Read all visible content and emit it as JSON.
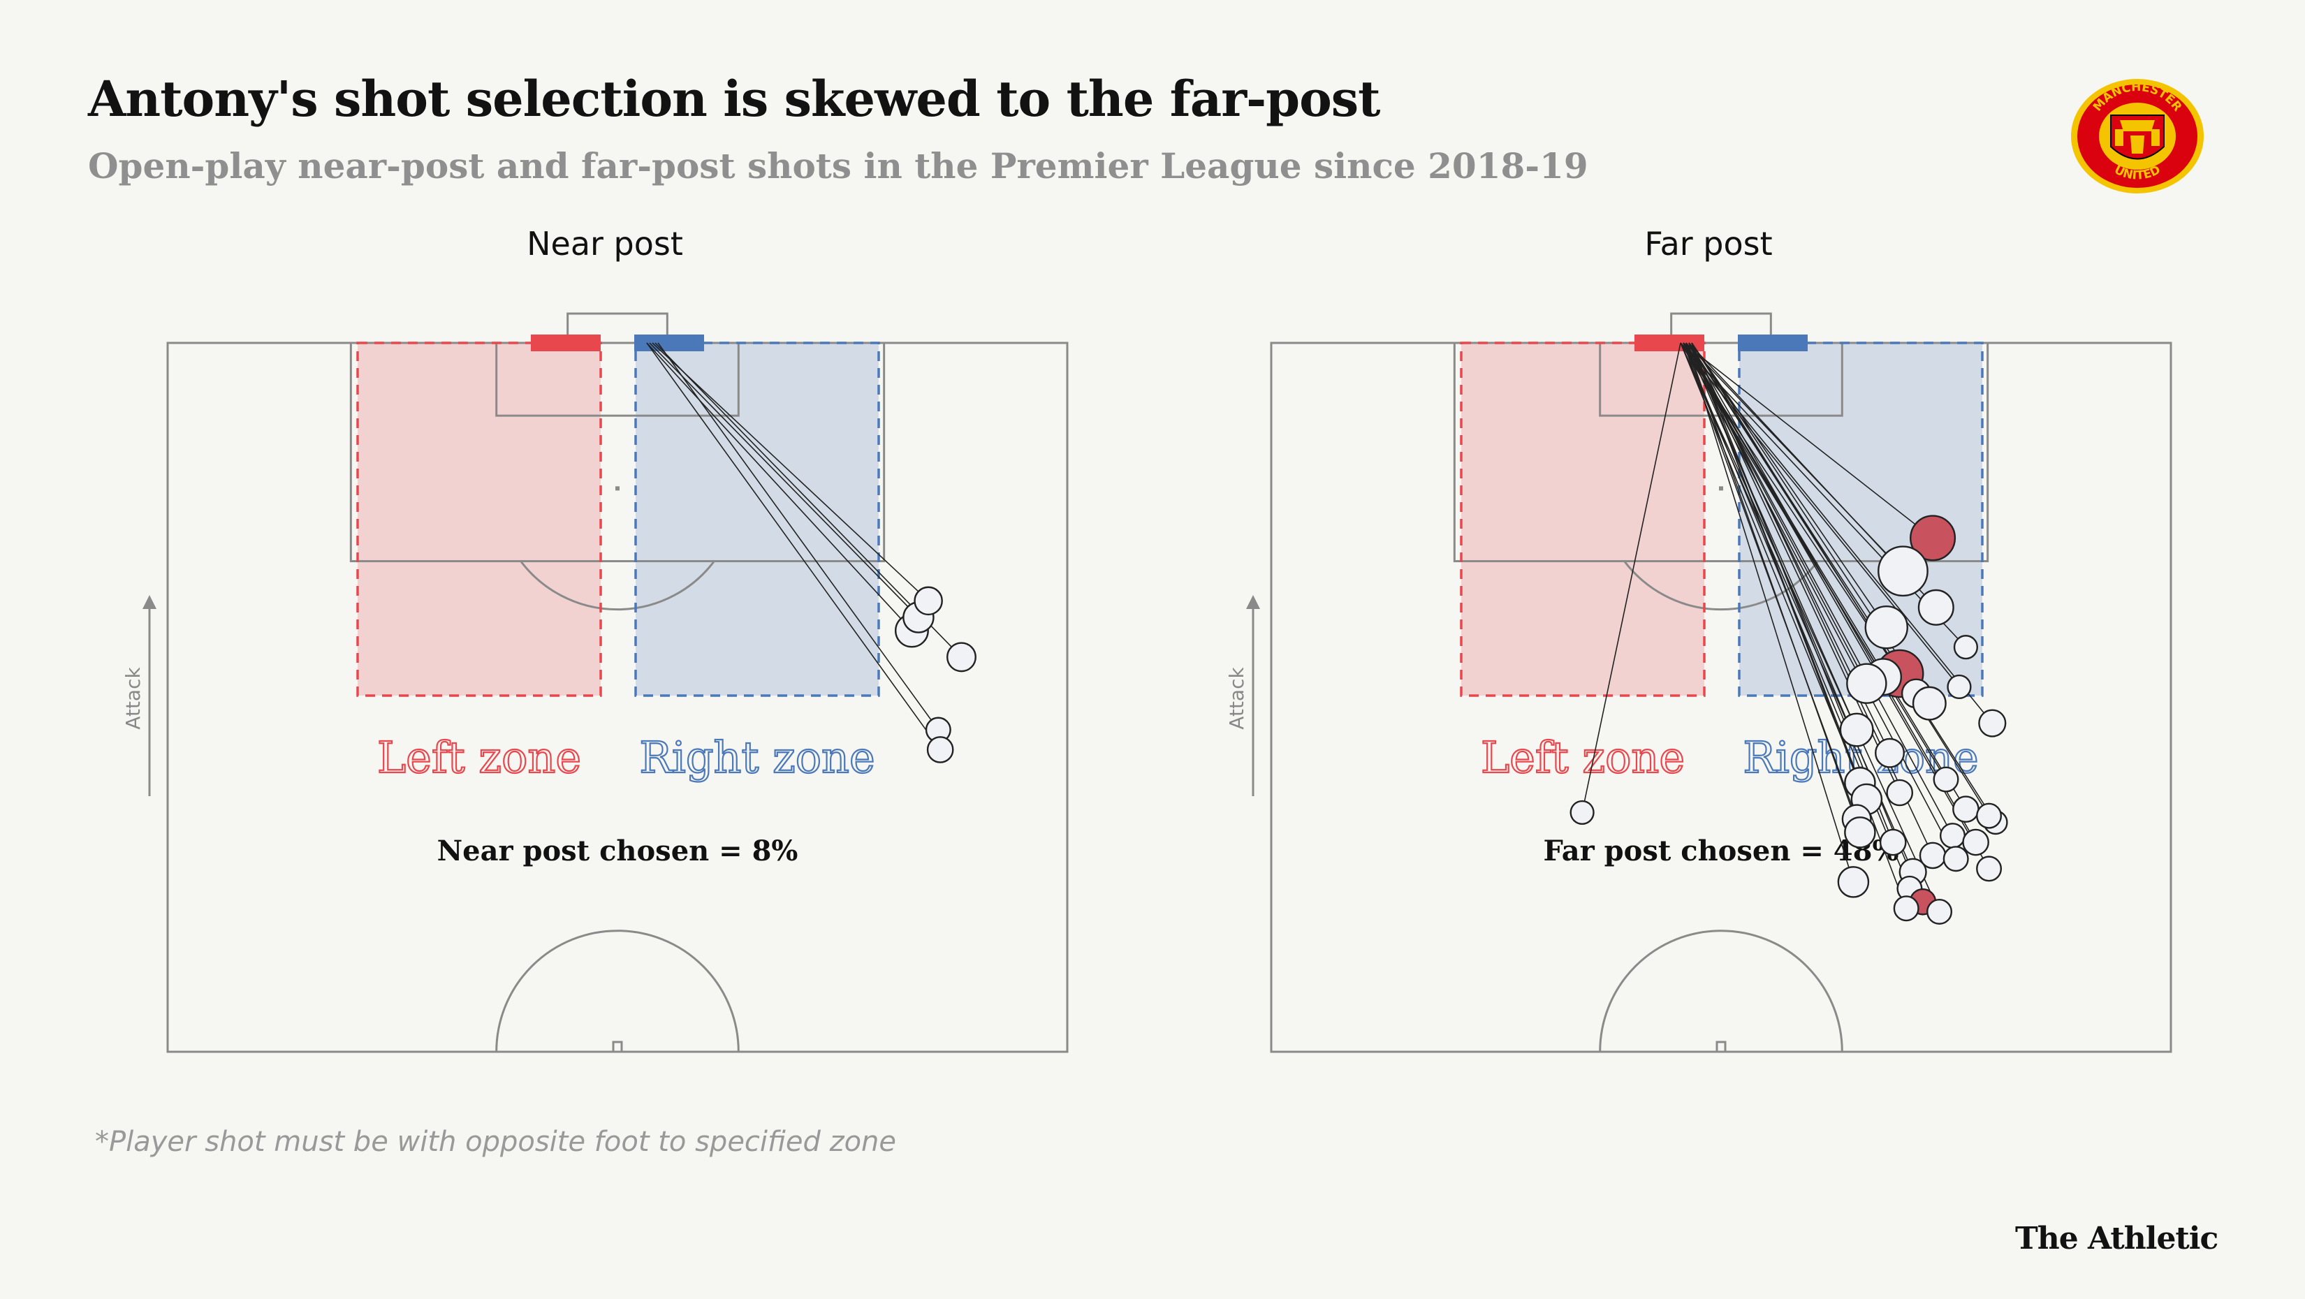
{
  "header": {
    "title": "Antony's shot selection is skewed to the far-post",
    "subtitle": "Open-play near-post and far-post shots in the Premier League since 2018-19"
  },
  "footer": {
    "footnote": "*Player shot must be with opposite foot to specified zone",
    "brand": "The Athletic"
  },
  "logo": {
    "icon": "manchester-united-crest",
    "text_top": "MANCHESTER",
    "text_bottom": "UNITED"
  },
  "colors": {
    "left_zone": "#e8474e",
    "right_zone": "#4a78b8",
    "goal_shot": "#c9525f",
    "pitch_line": "#8a8a8a"
  },
  "chart_data": [
    {
      "type": "scatter",
      "title": "Near post",
      "direction_label": "Attack",
      "zones": [
        "Left zone",
        "Right zone"
      ],
      "target_post": "right",
      "stat_text": "Near post chosen = 8%",
      "shots": [
        {
          "x": 44.5,
          "y": 43.5,
          "size": 0.15,
          "goal": false
        },
        {
          "x": 45.5,
          "y": 41.5,
          "size": 0.12,
          "goal": false
        },
        {
          "x": 47.0,
          "y": 39.0,
          "size": 0.09,
          "goal": false
        },
        {
          "x": 52.0,
          "y": 47.5,
          "size": 0.1,
          "goal": false
        },
        {
          "x": 48.5,
          "y": 58.5,
          "size": 0.06,
          "goal": false
        },
        {
          "x": 48.8,
          "y": 61.5,
          "size": 0.07,
          "goal": false
        }
      ]
    },
    {
      "type": "scatter",
      "title": "Far post",
      "direction_label": "Attack",
      "zones": [
        "Left zone",
        "Right zone"
      ],
      "target_post": "left",
      "stat_text": "Far post chosen = 48%",
      "shots": [
        {
          "x": -21.0,
          "y": 71.0,
          "size": 0.05,
          "goal": false
        },
        {
          "x": 32.0,
          "y": 29.5,
          "size": 0.35,
          "goal": true
        },
        {
          "x": 27.5,
          "y": 34.5,
          "size": 0.45,
          "goal": false
        },
        {
          "x": 32.5,
          "y": 40.0,
          "size": 0.18,
          "goal": false
        },
        {
          "x": 25.0,
          "y": 43.0,
          "size": 0.3,
          "goal": false
        },
        {
          "x": 27.0,
          "y": 50.0,
          "size": 0.4,
          "goal": true
        },
        {
          "x": 24.5,
          "y": 50.5,
          "size": 0.2,
          "goal": false
        },
        {
          "x": 22.0,
          "y": 51.5,
          "size": 0.25,
          "goal": false
        },
        {
          "x": 29.5,
          "y": 53.0,
          "size": 0.1,
          "goal": false
        },
        {
          "x": 31.5,
          "y": 54.5,
          "size": 0.15,
          "goal": false
        },
        {
          "x": 37.0,
          "y": 46.0,
          "size": 0.05,
          "goal": false
        },
        {
          "x": 41.0,
          "y": 57.5,
          "size": 0.08,
          "goal": false
        },
        {
          "x": 20.5,
          "y": 58.5,
          "size": 0.15,
          "goal": false
        },
        {
          "x": 25.5,
          "y": 62.0,
          "size": 0.1,
          "goal": false
        },
        {
          "x": 21.0,
          "y": 66.5,
          "size": 0.12,
          "goal": false
        },
        {
          "x": 22.0,
          "y": 69.0,
          "size": 0.12,
          "goal": false
        },
        {
          "x": 20.5,
          "y": 72.0,
          "size": 0.1,
          "goal": false
        },
        {
          "x": 21.0,
          "y": 74.0,
          "size": 0.12,
          "goal": false
        },
        {
          "x": 27.0,
          "y": 68.0,
          "size": 0.07,
          "goal": false
        },
        {
          "x": 26.0,
          "y": 75.5,
          "size": 0.07,
          "goal": false
        },
        {
          "x": 34.0,
          "y": 66.0,
          "size": 0.06,
          "goal": false
        },
        {
          "x": 37.0,
          "y": 70.5,
          "size": 0.07,
          "goal": false
        },
        {
          "x": 35.0,
          "y": 74.5,
          "size": 0.06,
          "goal": false
        },
        {
          "x": 38.5,
          "y": 75.5,
          "size": 0.07,
          "goal": false
        },
        {
          "x": 32.0,
          "y": 77.5,
          "size": 0.07,
          "goal": false
        },
        {
          "x": 29.0,
          "y": 80.0,
          "size": 0.08,
          "goal": false
        },
        {
          "x": 28.5,
          "y": 82.5,
          "size": 0.06,
          "goal": false
        },
        {
          "x": 20.0,
          "y": 81.5,
          "size": 0.12,
          "goal": false
        },
        {
          "x": 30.5,
          "y": 84.5,
          "size": 0.07,
          "goal": true
        },
        {
          "x": 28.0,
          "y": 85.5,
          "size": 0.06,
          "goal": false
        },
        {
          "x": 33.0,
          "y": 86.0,
          "size": 0.06,
          "goal": false
        },
        {
          "x": 35.5,
          "y": 78.0,
          "size": 0.06,
          "goal": false
        },
        {
          "x": 40.5,
          "y": 79.5,
          "size": 0.06,
          "goal": false
        },
        {
          "x": 41.5,
          "y": 72.5,
          "size": 0.05,
          "goal": false
        },
        {
          "x": 40.5,
          "y": 71.5,
          "size": 0.06,
          "goal": false
        },
        {
          "x": 36.0,
          "y": 52.0,
          "size": 0.05,
          "goal": false
        }
      ]
    }
  ]
}
